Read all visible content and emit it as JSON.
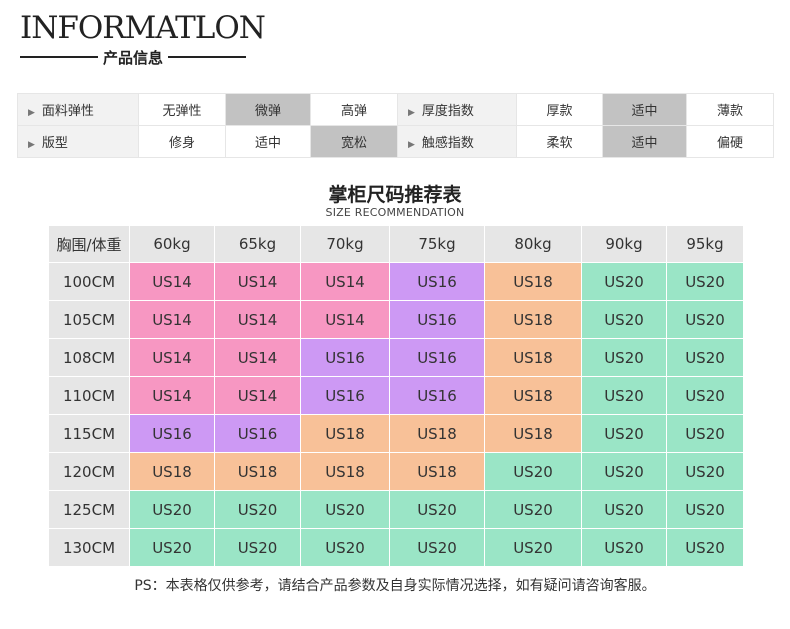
{
  "header": {
    "title": "INFORMATLON",
    "subtitle": "产品信息"
  },
  "info": {
    "rows": [
      {
        "left": {
          "label": "面料弹性",
          "options": [
            "无弹性",
            "微弹",
            "高弹"
          ],
          "selected": 1
        },
        "right": {
          "label": "厚度指数",
          "options": [
            "厚款",
            "适中",
            "薄款"
          ],
          "selected": 1
        }
      },
      {
        "left": {
          "label": "版型",
          "options": [
            "修身",
            "适中",
            "宽松"
          ],
          "selected": 2
        },
        "right": {
          "label": "触感指数",
          "options": [
            "柔软",
            "适中",
            "偏硬"
          ],
          "selected": 1
        }
      }
    ]
  },
  "size_table": {
    "title": "掌柜尺码推荐表",
    "subtitle": "SIZE RECOMMENDATION",
    "corner": "胸围/体重",
    "weights": [
      "60kg",
      "65kg",
      "70kg",
      "75kg",
      "80kg",
      "90kg",
      "95kg"
    ],
    "rows": [
      {
        "chest": "100CM",
        "sizes": [
          "US14",
          "US14",
          "US14",
          "US16",
          "US18",
          "US20",
          "US20"
        ]
      },
      {
        "chest": "105CM",
        "sizes": [
          "US14",
          "US14",
          "US14",
          "US16",
          "US18",
          "US20",
          "US20"
        ]
      },
      {
        "chest": "108CM",
        "sizes": [
          "US14",
          "US14",
          "US16",
          "US16",
          "US18",
          "US20",
          "US20"
        ]
      },
      {
        "chest": "110CM",
        "sizes": [
          "US14",
          "US14",
          "US16",
          "US16",
          "US18",
          "US20",
          "US20"
        ]
      },
      {
        "chest": "115CM",
        "sizes": [
          "US16",
          "US16",
          "US18",
          "US18",
          "US18",
          "US20",
          "US20"
        ]
      },
      {
        "chest": "120CM",
        "sizes": [
          "US18",
          "US18",
          "US18",
          "US18",
          "US20",
          "US20",
          "US20"
        ]
      },
      {
        "chest": "125CM",
        "sizes": [
          "US20",
          "US20",
          "US20",
          "US20",
          "US20",
          "US20",
          "US20"
        ]
      },
      {
        "chest": "130CM",
        "sizes": [
          "US20",
          "US20",
          "US20",
          "US20",
          "US20",
          "US20",
          "US20"
        ]
      }
    ],
    "size_colors": {
      "US14": "#f797c2",
      "US16": "#cd99f4",
      "US18": "#f8c198",
      "US20": "#9ae5c6"
    }
  },
  "note": "PS：本表格仅供参考，请结合产品参数及自身实际情况选择，如有疑问请咨询客服。"
}
